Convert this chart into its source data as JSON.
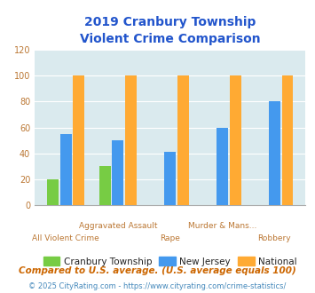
{
  "title": "2019 Cranbury Township\nViolent Crime Comparison",
  "categories_top": [
    "",
    "Aggravated Assault",
    "",
    "Murder & Mans...",
    ""
  ],
  "categories_bot": [
    "All Violent Crime",
    "",
    "Rape",
    "",
    "Robbery"
  ],
  "cranbury": [
    20,
    30,
    0,
    0,
    0
  ],
  "nj": [
    55,
    50,
    41,
    60,
    80
  ],
  "national": [
    100,
    100,
    100,
    100,
    100
  ],
  "cranbury_color": "#77cc44",
  "nj_color": "#4499ee",
  "national_color": "#ffaa33",
  "bg_color": "#daeaee",
  "ylim": [
    0,
    120
  ],
  "yticks": [
    0,
    20,
    40,
    60,
    80,
    100,
    120
  ],
  "legend_labels": [
    "Cranbury Township",
    "New Jersey",
    "National"
  ],
  "footnote1": "Compared to U.S. average. (U.S. average equals 100)",
  "footnote2": "© 2025 CityRating.com - https://www.cityrating.com/crime-statistics/",
  "title_color": "#2255cc",
  "xlabel_color": "#bb7733",
  "footnote1_color": "#cc6600",
  "footnote2_color": "#4488bb",
  "tick_color": "#bb7733",
  "grid_color": "#ffffff",
  "bar_width": 0.22,
  "bar_gap": 0.03
}
